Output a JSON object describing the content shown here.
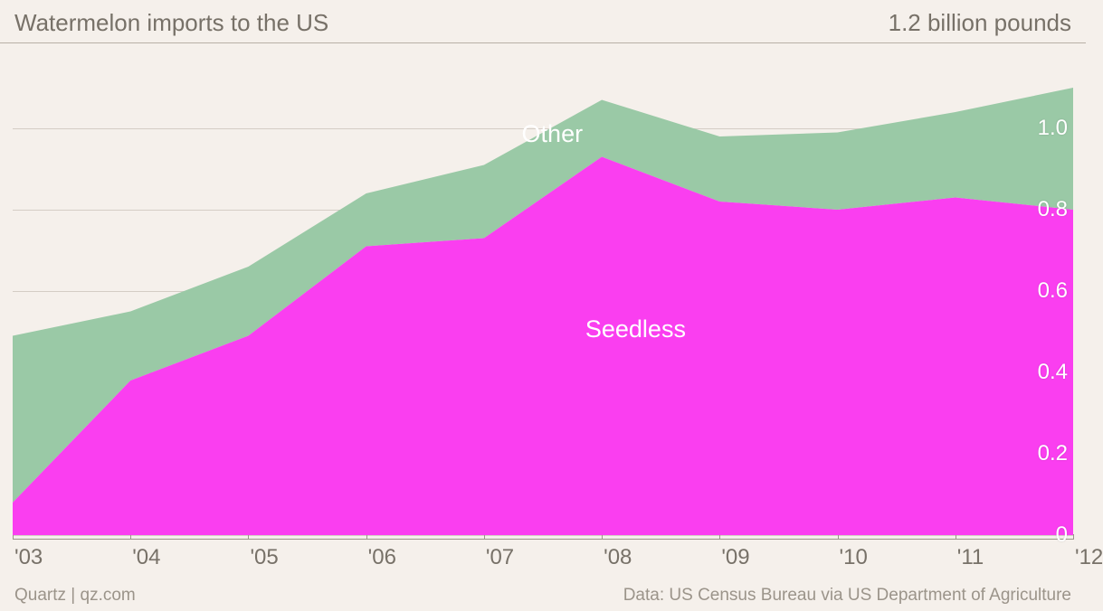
{
  "chart": {
    "type": "area",
    "title": "Watermelon imports to the US",
    "units_label": "1.2 billion pounds",
    "background_color": "#f5f0eb",
    "grid_color": "#b8b0a6",
    "header_border_color": "#b8b0a6",
    "title_color": "#777168",
    "xaxis": {
      "categories": [
        "'03",
        "'04",
        "'05",
        "'06",
        "'07",
        "'08",
        "'09",
        "'10",
        "'11",
        "'12"
      ],
      "tick_color": "#9b948a",
      "label_color": "#777168",
      "label_fontsize": 24
    },
    "yaxis": {
      "min": 0,
      "max": 1.2,
      "ticks": [
        0,
        0.2,
        0.4,
        0.6,
        0.8,
        1.0
      ],
      "tick_labels": [
        "0",
        "0.2",
        "0.4",
        "0.6",
        "0.8",
        "1.0"
      ],
      "label_color": "#ffffff",
      "label_fontsize": 24
    },
    "series": [
      {
        "name": "Seedless",
        "label": "Seedless",
        "label_pos": {
          "x_pct": 54,
          "y_pct": 55
        },
        "color": "#fa3ef0",
        "values": [
          0.08,
          0.38,
          0.49,
          0.71,
          0.73,
          0.93,
          0.82,
          0.8,
          0.83,
          0.8
        ]
      },
      {
        "name": "Other",
        "label": "Other",
        "label_pos": {
          "x_pct": 48,
          "y_pct": 15
        },
        "color": "#9ac9a6",
        "values": [
          0.41,
          0.17,
          0.17,
          0.13,
          0.18,
          0.14,
          0.16,
          0.19,
          0.21,
          0.3
        ]
      }
    ],
    "source_left": "Quartz | qz.com",
    "source_right": "Data: US Census Bureau via US Department of Agriculture",
    "source_color": "#9b948a",
    "source_fontsize": 19
  }
}
